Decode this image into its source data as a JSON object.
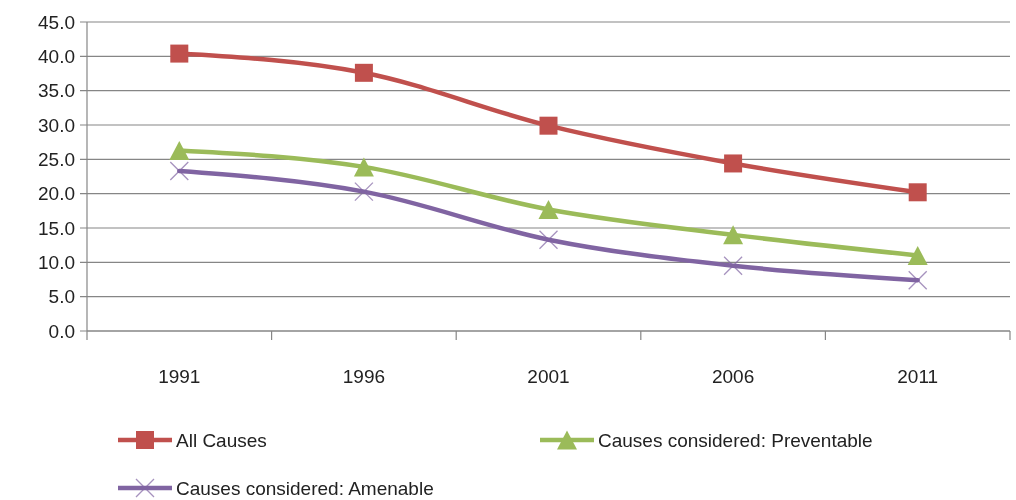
{
  "chart_data": {
    "type": "line",
    "categories": [
      "1991",
      "1996",
      "2001",
      "2006",
      "2011"
    ],
    "series": [
      {
        "name": "All Causes",
        "color": "#c0504d",
        "marker": "square",
        "values": [
          40.4,
          37.6,
          29.9,
          24.4,
          20.2
        ]
      },
      {
        "name": "Causes considered: Preventable",
        "color": "#9bbb59",
        "marker": "triangle",
        "values": [
          26.3,
          23.9,
          17.7,
          14.0,
          11.0
        ]
      },
      {
        "name": "Causes considered: Amenable",
        "color": "#8064a2",
        "marker": "cross",
        "values": [
          23.3,
          20.3,
          13.3,
          9.5,
          7.4
        ]
      }
    ],
    "ylim": [
      0,
      45
    ],
    "yticks": [
      {
        "value": 0,
        "label": "0.0"
      },
      {
        "value": 5,
        "label": "5.0"
      },
      {
        "value": 10,
        "label": "10.0"
      },
      {
        "value": 15,
        "label": "15.0"
      },
      {
        "value": 20,
        "label": "20.0"
      },
      {
        "value": 25,
        "label": "25.0"
      },
      {
        "value": 30,
        "label": "30.0"
      },
      {
        "value": 35,
        "label": "35.0"
      },
      {
        "value": 40,
        "label": "40.0"
      },
      {
        "value": 45,
        "label": "45.0"
      }
    ],
    "grid": "y",
    "legend": "bottom"
  }
}
